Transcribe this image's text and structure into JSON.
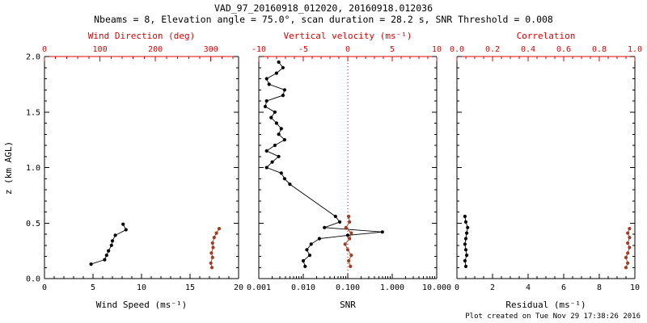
{
  "title": "VAD_97_20160918_012020, 20160918.012036",
  "subtitle": "Nbeams = 8, Elevation angle = 75.0°, scan duration = 28.2 s, SNR Threshold = 0.008",
  "footer": "Plot created on Tue Nov 29 17:38:26 2016",
  "colors": {
    "black": "#000000",
    "axis_red": "#e00000",
    "data_red": "#a23b22"
  },
  "y_axis": {
    "label": "z (km AGL)",
    "min": 0,
    "max": 2,
    "ticks": [
      0,
      0.5,
      1,
      1.5,
      2
    ],
    "tick_labels": [
      "0.0",
      "0.5",
      "1.0",
      "1.5",
      "2.0"
    ],
    "minor_step": 0.1
  },
  "chart_data": [
    {
      "type": "scatter",
      "id": "wind",
      "x_bottom": {
        "label": "Wind Speed (ms⁻¹)",
        "min": 0,
        "max": 20,
        "ticks": [
          0,
          5,
          10,
          15,
          20
        ],
        "tick_labels": [
          "0",
          "5",
          "10",
          "15",
          "20"
        ],
        "minor_step": 1
      },
      "x_top": {
        "label": "Wind Direction (deg)",
        "min": 0,
        "max": 350,
        "ticks": [
          0,
          100,
          200,
          300
        ],
        "tick_labels": [
          "0",
          "100",
          "200",
          "300"
        ],
        "minor_step": 20
      },
      "series": [
        {
          "name": "wind-speed",
          "axis": "bottom",
          "color": "black",
          "z": [
            0.13,
            0.17,
            0.21,
            0.25,
            0.3,
            0.34,
            0.39,
            0.44,
            0.49
          ],
          "x": [
            4.8,
            6.2,
            6.4,
            6.6,
            6.9,
            7.0,
            7.3,
            8.4,
            8.1
          ]
        },
        {
          "name": "wind-direction",
          "axis": "top",
          "color": "data_red",
          "z": [
            0.1,
            0.14,
            0.19,
            0.23,
            0.28,
            0.32,
            0.37,
            0.41,
            0.45
          ],
          "x": [
            302,
            300,
            303,
            301,
            304,
            303,
            306,
            310,
            315
          ]
        }
      ]
    },
    {
      "type": "scatter",
      "id": "snr",
      "x_bottom": {
        "label": "SNR",
        "scale": "log",
        "min": 0.001,
        "max": 10,
        "ticks": [
          0.001,
          0.01,
          0.1,
          1,
          10
        ],
        "tick_labels": [
          "0.001",
          "0.010",
          "0.100",
          "1.000",
          "10.000"
        ]
      },
      "x_top": {
        "label": "Vertical velocity (ms⁻¹)",
        "min": -10,
        "max": 10,
        "ticks": [
          -10,
          -5,
          0,
          5,
          10
        ],
        "tick_labels": [
          "-10",
          "-5",
          "0",
          "5",
          "10"
        ],
        "minor_step": 1
      },
      "refline_top": 0,
      "series": [
        {
          "name": "snr",
          "axis": "bottom",
          "color": "black",
          "z": [
            1.95,
            1.9,
            1.85,
            1.8,
            1.75,
            1.7,
            1.65,
            1.6,
            1.55,
            1.5,
            1.45,
            1.4,
            1.35,
            1.3,
            1.25,
            1.2,
            1.15,
            1.1,
            1.05,
            1.0,
            0.95,
            0.9,
            0.85,
            0.56,
            0.51,
            0.46,
            0.42,
            0.39,
            0.36,
            0.31,
            0.26,
            0.21,
            0.16,
            0.11
          ],
          "x": [
            0.0028,
            0.0035,
            0.0025,
            0.0015,
            0.0017,
            0.0038,
            0.0035,
            0.0015,
            0.0014,
            0.0023,
            0.0019,
            0.0025,
            0.0032,
            0.0028,
            0.0038,
            0.0023,
            0.0015,
            0.0028,
            0.002,
            0.0015,
            0.0032,
            0.0038,
            0.005,
            0.053,
            0.066,
            0.03,
            0.6,
            0.1,
            0.023,
            0.015,
            0.012,
            0.014,
            0.01,
            0.011
          ]
        },
        {
          "name": "vertical-velocity",
          "axis": "top",
          "color": "data_red",
          "z": [
            0.56,
            0.51,
            0.46,
            0.41,
            0.36,
            0.31,
            0.26,
            0.21,
            0.16,
            0.11
          ],
          "x": [
            0.1,
            0.2,
            -0.2,
            0.4,
            0.2,
            -0.3,
            0.0,
            0.4,
            0.1,
            0.3
          ]
        }
      ]
    },
    {
      "type": "scatter",
      "id": "residual",
      "x_bottom": {
        "label": "Residual (ms⁻¹)",
        "min": 0,
        "max": 10,
        "ticks": [
          0,
          2,
          4,
          6,
          8,
          10
        ],
        "tick_labels": [
          "0",
          "2",
          "4",
          "6",
          "8",
          "10"
        ],
        "minor_step": 0.5
      },
      "x_top": {
        "label": "Correlation",
        "min": 0,
        "max": 1,
        "ticks": [
          0,
          0.2,
          0.4,
          0.6,
          0.8,
          1.0
        ],
        "tick_labels": [
          "0.0",
          "0.2",
          "0.4",
          "0.6",
          "0.8",
          "1.0"
        ],
        "minor_step": 0.05
      },
      "series": [
        {
          "name": "residual",
          "axis": "bottom",
          "color": "black",
          "z": [
            0.56,
            0.51,
            0.46,
            0.41,
            0.36,
            0.31,
            0.26,
            0.21,
            0.16,
            0.11
          ],
          "x": [
            0.45,
            0.5,
            0.6,
            0.55,
            0.5,
            0.45,
            0.5,
            0.55,
            0.45,
            0.5
          ]
        },
        {
          "name": "correlation",
          "axis": "top",
          "color": "data_red",
          "z": [
            0.45,
            0.41,
            0.37,
            0.32,
            0.28,
            0.23,
            0.19,
            0.14,
            0.1
          ],
          "x": [
            0.97,
            0.96,
            0.97,
            0.96,
            0.97,
            0.96,
            0.95,
            0.96,
            0.95
          ]
        }
      ]
    }
  ]
}
